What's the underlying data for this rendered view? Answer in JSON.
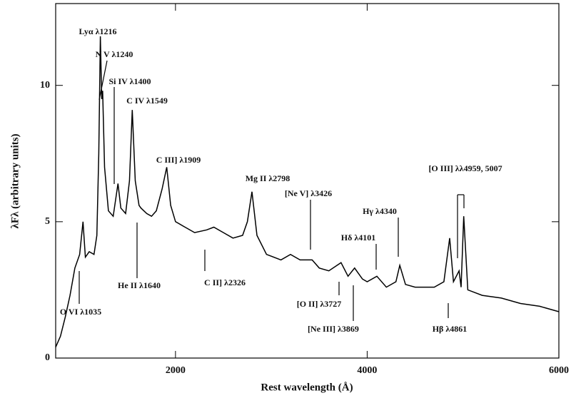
{
  "chart_data": {
    "type": "line",
    "xlabel": "Rest wavelength (Å)",
    "ylabel": "λFλ (arbitrary units)",
    "xlim": [
      750,
      6000
    ],
    "ylim": [
      0,
      13
    ],
    "xticks": [
      2000,
      4000,
      6000
    ],
    "yticks": [
      0,
      5,
      10
    ],
    "color": "#000000",
    "x": [
      750,
      800,
      850,
      900,
      950,
      1000,
      1035,
      1060,
      1100,
      1150,
      1180,
      1200,
      1216,
      1230,
      1240,
      1260,
      1300,
      1350,
      1400,
      1430,
      1480,
      1520,
      1549,
      1580,
      1620,
      1640,
      1700,
      1750,
      1800,
      1860,
      1909,
      1950,
      2000,
      2100,
      2200,
      2326,
      2400,
      2500,
      2600,
      2700,
      2750,
      2798,
      2850,
      2950,
      3100,
      3200,
      3300,
      3426,
      3500,
      3600,
      3727,
      3800,
      3869,
      3950,
      4000,
      4101,
      4200,
      4300,
      4340,
      4400,
      4500,
      4600,
      4700,
      4800,
      4861,
      4900,
      4959,
      4980,
      5007,
      5050,
      5200,
      5400,
      5600,
      5800,
      6000
    ],
    "values": [
      0.4,
      0.8,
      1.5,
      2.3,
      3.3,
      3.8,
      5.0,
      3.7,
      3.9,
      3.8,
      4.5,
      7.5,
      11.8,
      9.5,
      9.8,
      7.0,
      5.4,
      5.2,
      6.4,
      5.5,
      5.3,
      6.5,
      9.1,
      6.5,
      5.6,
      5.5,
      5.3,
      5.2,
      5.4,
      6.2,
      7.0,
      5.6,
      5.0,
      4.8,
      4.6,
      4.7,
      4.8,
      4.6,
      4.4,
      4.5,
      5.0,
      6.1,
      4.5,
      3.8,
      3.6,
      3.8,
      3.6,
      3.6,
      3.3,
      3.2,
      3.5,
      3.0,
      3.3,
      2.9,
      2.8,
      3.0,
      2.6,
      2.8,
      3.4,
      2.7,
      2.6,
      2.6,
      2.6,
      2.8,
      4.4,
      2.8,
      3.2,
      2.6,
      5.2,
      2.5,
      2.3,
      2.2,
      2.0,
      1.9,
      1.7
    ],
    "annotations": [
      "Lyα λ1216",
      "N V λ1240",
      "Si IV λ1400",
      "C IV λ1549",
      "C III] λ1909",
      "Mg II λ2798",
      "[Ne V] λ3426",
      "Hδ λ4101",
      "Hγ λ4340",
      "[O III] λλ4959, 5007",
      "O VI λ1035",
      "He II λ1640",
      "C II] λ2326",
      "[O II] λ3727",
      "[Ne III] λ3869",
      "Hβ λ4861"
    ]
  }
}
